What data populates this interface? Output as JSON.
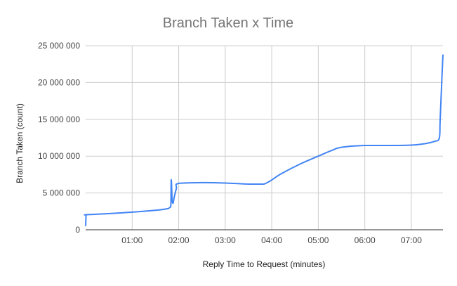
{
  "chart_data": {
    "type": "line",
    "title": "Branch Taken x Time",
    "xlabel": "Reply Time to Request (minutes)",
    "ylabel": "Branch  Taken (count)",
    "x_unit": "minutes",
    "xlim": [
      0,
      7.68
    ],
    "ylim": [
      0,
      25000000
    ],
    "x_ticks": [
      {
        "value": 1,
        "label": "01:00"
      },
      {
        "value": 2,
        "label": "02:00"
      },
      {
        "value": 3,
        "label": "03:00"
      },
      {
        "value": 4,
        "label": "04:00"
      },
      {
        "value": 5,
        "label": "05:00"
      },
      {
        "value": 6,
        "label": "06:00"
      },
      {
        "value": 7,
        "label": "07:00"
      }
    ],
    "y_ticks": [
      {
        "value": 0,
        "label": "0"
      },
      {
        "value": 5000000,
        "label": "5 000 000"
      },
      {
        "value": 10000000,
        "label": "10 000 000"
      },
      {
        "value": 15000000,
        "label": "15 000 000"
      },
      {
        "value": 20000000,
        "label": "20 000 000"
      },
      {
        "value": 25000000,
        "label": "25 000 000"
      }
    ],
    "grid": true,
    "series": [
      {
        "color": "#4285f4",
        "x": [
          0.0,
          0.01,
          0.02,
          0.5,
          1.0,
          1.5,
          1.75,
          1.8,
          1.83,
          1.84,
          1.86,
          1.88,
          1.9,
          1.95,
          2.0,
          2.5,
          3.0,
          3.5,
          3.83,
          4.2,
          4.6,
          5.0,
          5.3,
          5.5,
          6.0,
          6.5,
          7.0,
          7.3,
          7.5,
          7.6,
          7.62,
          7.66,
          7.68
        ],
        "y": [
          500000,
          2000000,
          2050000,
          2200000,
          2400000,
          2650000,
          2850000,
          3000000,
          3200000,
          6800000,
          3900000,
          3600000,
          4300000,
          5600000,
          6300000,
          6400000,
          6350000,
          6200000,
          6200000,
          7600000,
          8900000,
          10000000,
          10800000,
          11200000,
          11450000,
          11450000,
          11500000,
          11700000,
          12000000,
          12400000,
          15000000,
          21000000,
          23800000
        ]
      }
    ]
  }
}
